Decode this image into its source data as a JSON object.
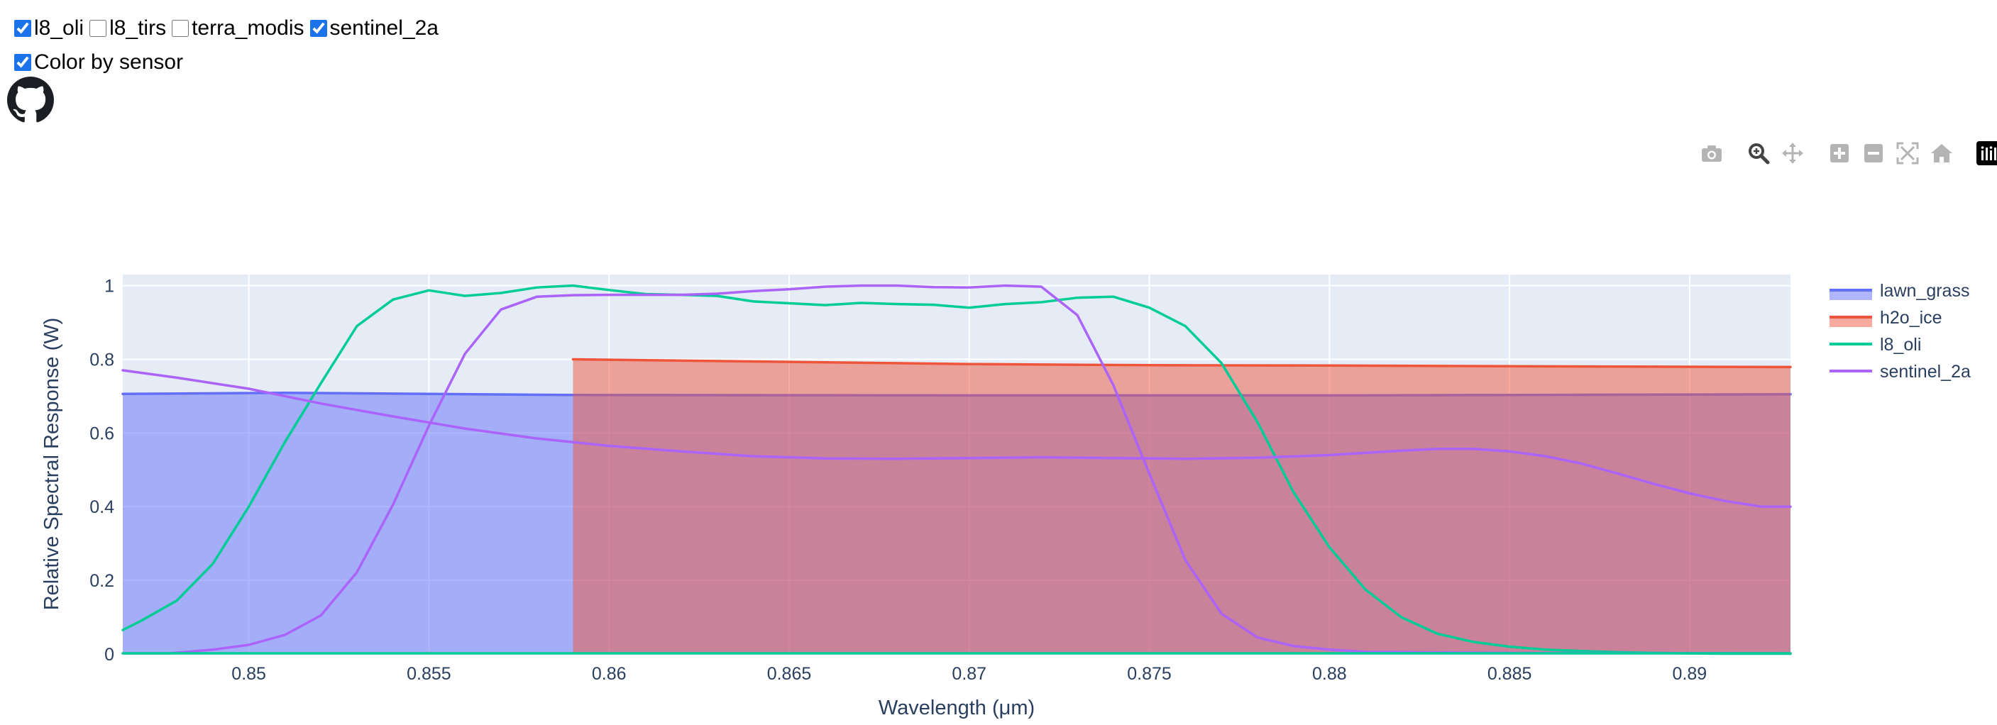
{
  "controls": {
    "sensors": [
      {
        "label": "l8_oli",
        "checked": true
      },
      {
        "label": "l8_tirs",
        "checked": false
      },
      {
        "label": "terra_modis",
        "checked": false
      },
      {
        "label": "sentinel_2a",
        "checked": true
      }
    ],
    "color_by_sensor": {
      "label": "Color by sensor",
      "checked": true
    }
  },
  "icons": {
    "github": "github-icon",
    "modebar": [
      "camera-icon",
      "zoom-icon",
      "pan-icon",
      "zoom-in-icon",
      "zoom-out-icon",
      "autoscale-icon",
      "reset-axes-icon",
      "plotly-logo-icon"
    ]
  },
  "chart_data": {
    "type": "area",
    "title": "",
    "xlabel": "Wavelength (μm)",
    "ylabel": "Relative Spectral Response (W)",
    "xlim": [
      0.8465,
      0.8928
    ],
    "ylim": [
      0,
      1.03
    ],
    "x_ticks": [
      "0.85",
      "0.855",
      "0.86",
      "0.865",
      "0.87",
      "0.875",
      "0.88",
      "0.885",
      "0.89"
    ],
    "y_ticks": [
      "0",
      "0.2",
      "0.4",
      "0.6",
      "0.8",
      "1"
    ],
    "grid": true,
    "legend_position": "right",
    "plot_background": "#e5ecf6",
    "series": [
      {
        "name": "lawn_grass",
        "color": "#636efa",
        "fill": "tozeroy",
        "x": [
          0.8465,
          0.851,
          0.855,
          0.859,
          0.87,
          0.88,
          0.8928
        ],
        "y": [
          0.706,
          0.709,
          0.706,
          0.703,
          0.702,
          0.702,
          0.705
        ]
      },
      {
        "name": "h2o_ice",
        "color": "#ef553b",
        "fill": "tozeroy",
        "x": [
          0.859,
          0.865,
          0.87,
          0.875,
          0.88,
          0.885,
          0.8928
        ],
        "y": [
          0.8,
          0.793,
          0.787,
          0.784,
          0.783,
          0.781,
          0.779
        ]
      },
      {
        "name": "l8_oli",
        "color": "#00cc96",
        "fill": "none",
        "x": [
          0.8465,
          0.847,
          0.848,
          0.849,
          0.85,
          0.851,
          0.852,
          0.853,
          0.854,
          0.855,
          0.856,
          0.857,
          0.858,
          0.859,
          0.86,
          0.861,
          0.862,
          0.863,
          0.864,
          0.865,
          0.866,
          0.867,
          0.868,
          0.869,
          0.87,
          0.871,
          0.872,
          0.873,
          0.874,
          0.875,
          0.876,
          0.877,
          0.878,
          0.879,
          0.88,
          0.881,
          0.882,
          0.883,
          0.884,
          0.885,
          0.886,
          0.887,
          0.888,
          0.889,
          0.89,
          0.891,
          0.8928
        ],
        "y": [
          0.065,
          0.09,
          0.145,
          0.245,
          0.4,
          0.575,
          0.735,
          0.89,
          0.962,
          0.987,
          0.972,
          0.98,
          0.995,
          1.0,
          0.988,
          0.977,
          0.975,
          0.972,
          0.957,
          0.952,
          0.947,
          0.953,
          0.95,
          0.948,
          0.94,
          0.95,
          0.955,
          0.967,
          0.97,
          0.94,
          0.89,
          0.79,
          0.63,
          0.44,
          0.29,
          0.175,
          0.1,
          0.055,
          0.033,
          0.02,
          0.012,
          0.008,
          0.005,
          0.003,
          0.002,
          0.001,
          0.001
        ]
      },
      {
        "name": "sentinel_2a",
        "color": "#ab63fa",
        "fill": "none",
        "x": [
          0.8465,
          0.8478,
          0.849,
          0.85,
          0.851,
          0.852,
          0.853,
          0.854,
          0.855,
          0.856,
          0.857,
          0.858,
          0.859,
          0.86,
          0.861,
          0.862,
          0.863,
          0.864,
          0.865,
          0.866,
          0.867,
          0.868,
          0.869,
          0.87,
          0.871,
          0.872,
          0.873,
          0.874,
          0.875,
          0.876,
          0.877,
          0.878,
          0.879,
          0.88,
          0.881,
          0.885,
          0.8928
        ],
        "y": [
          0.002,
          0.002,
          0.012,
          0.025,
          0.052,
          0.105,
          0.222,
          0.405,
          0.62,
          0.815,
          0.935,
          0.97,
          0.974,
          0.975,
          0.975,
          0.975,
          0.978,
          0.985,
          0.99,
          0.997,
          1.0,
          1.0,
          0.996,
          0.995,
          1.0,
          0.997,
          0.92,
          0.73,
          0.49,
          0.255,
          0.11,
          0.045,
          0.022,
          0.012,
          0.006,
          0.003,
          0.002
        ]
      },
      {
        "name": "",
        "color": "#ab63fa",
        "fill": "none",
        "legend": false,
        "x": [
          0.8465,
          0.848,
          0.85,
          0.852,
          0.854,
          0.856,
          0.858,
          0.86,
          0.862,
          0.864,
          0.866,
          0.868,
          0.87,
          0.872,
          0.874,
          0.876,
          0.878,
          0.88,
          0.882,
          0.883,
          0.884,
          0.885,
          0.886,
          0.887,
          0.888,
          0.889,
          0.89,
          0.891,
          0.892,
          0.8928
        ],
        "y": [
          0.77,
          0.75,
          0.72,
          0.68,
          0.645,
          0.612,
          0.585,
          0.565,
          0.55,
          0.537,
          0.531,
          0.53,
          0.532,
          0.534,
          0.532,
          0.53,
          0.533,
          0.54,
          0.552,
          0.557,
          0.557,
          0.55,
          0.537,
          0.517,
          0.49,
          0.462,
          0.436,
          0.415,
          0.4,
          0.4
        ]
      },
      {
        "name": "",
        "color": "#00cc96",
        "fill": "none",
        "legend": false,
        "x": [
          0.8465,
          0.8928
        ],
        "y": [
          0.002,
          0.002
        ]
      }
    ]
  }
}
